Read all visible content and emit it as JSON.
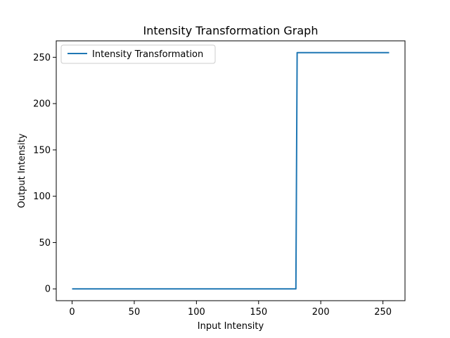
{
  "chart_data": {
    "type": "line",
    "title": "Intensity Transformation Graph",
    "xlabel": "Input Intensity",
    "ylabel": "Output Intensity",
    "xlim": [
      -12.75,
      267.75
    ],
    "ylim": [
      -12.75,
      267.75
    ],
    "x_ticks": [
      0,
      50,
      100,
      150,
      200,
      250
    ],
    "y_ticks": [
      0,
      50,
      100,
      150,
      200,
      250
    ],
    "x_tick_labels": [
      "0",
      "50",
      "100",
      "150",
      "200",
      "250"
    ],
    "y_tick_labels": [
      "0",
      "50",
      "100",
      "150",
      "200",
      "250"
    ],
    "grid": false,
    "legend_position": "top-left",
    "series": [
      {
        "name": "Intensity Transformation",
        "color": "#1f77b4",
        "x": [
          0,
          180,
          181,
          255
        ],
        "y": [
          0,
          0,
          255,
          255
        ]
      }
    ]
  }
}
